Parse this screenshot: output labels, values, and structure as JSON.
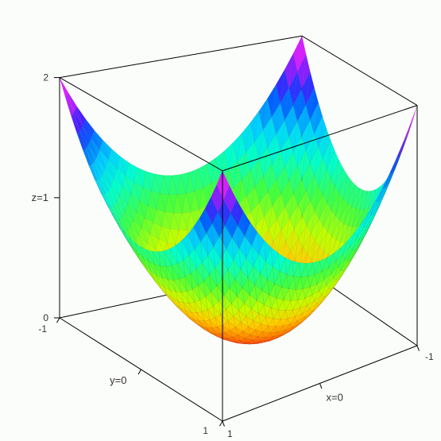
{
  "plot": {
    "type": "3d-surface",
    "function": "z = x^2 + y^2",
    "x_range": [
      -1,
      1
    ],
    "y_range": [
      -1,
      1
    ],
    "z_range": [
      0,
      2
    ],
    "grid_resolution": 28,
    "colormap": "rainbow",
    "color_stops": [
      [
        0.0,
        "#ff2020"
      ],
      [
        0.1,
        "#ff8000"
      ],
      [
        0.2,
        "#ffd000"
      ],
      [
        0.3,
        "#c0ff00"
      ],
      [
        0.42,
        "#40ff40"
      ],
      [
        0.55,
        "#00ffd0"
      ],
      [
        0.65,
        "#00d0ff"
      ],
      [
        0.75,
        "#0060ff"
      ],
      [
        0.82,
        "#4020ff"
      ],
      [
        0.9,
        "#c020ff"
      ],
      [
        1.0,
        "#ff20ff"
      ]
    ],
    "mesh_alpha": 0.12,
    "background_color": "#fbfdfa",
    "box_edge_color": "#000000",
    "box_edge_width": 1,
    "axis_labels": {
      "x": "x=0",
      "y": "y=0",
      "z": "z=1"
    },
    "tick_labels_x": [
      "-1",
      "1"
    ],
    "tick_labels_y": [
      "-1",
      "1"
    ],
    "tick_labels_z": [
      "0",
      "2"
    ],
    "label_fontsize": 13,
    "tick_fontsize": 12,
    "projection": {
      "type": "orthographic-ish",
      "corners_screen": {
        "A": [
          280,
          530
        ],
        "B": [
          525,
          435
        ],
        "C": [
          380,
          335
        ],
        "D": [
          75,
          400
        ],
        "E": [
          280,
          215
        ],
        "F": [
          525,
          120
        ],
        "G": [
          380,
          20
        ],
        "H": [
          75,
          85
        ]
      },
      "z_alpha": 0.92
    }
  }
}
